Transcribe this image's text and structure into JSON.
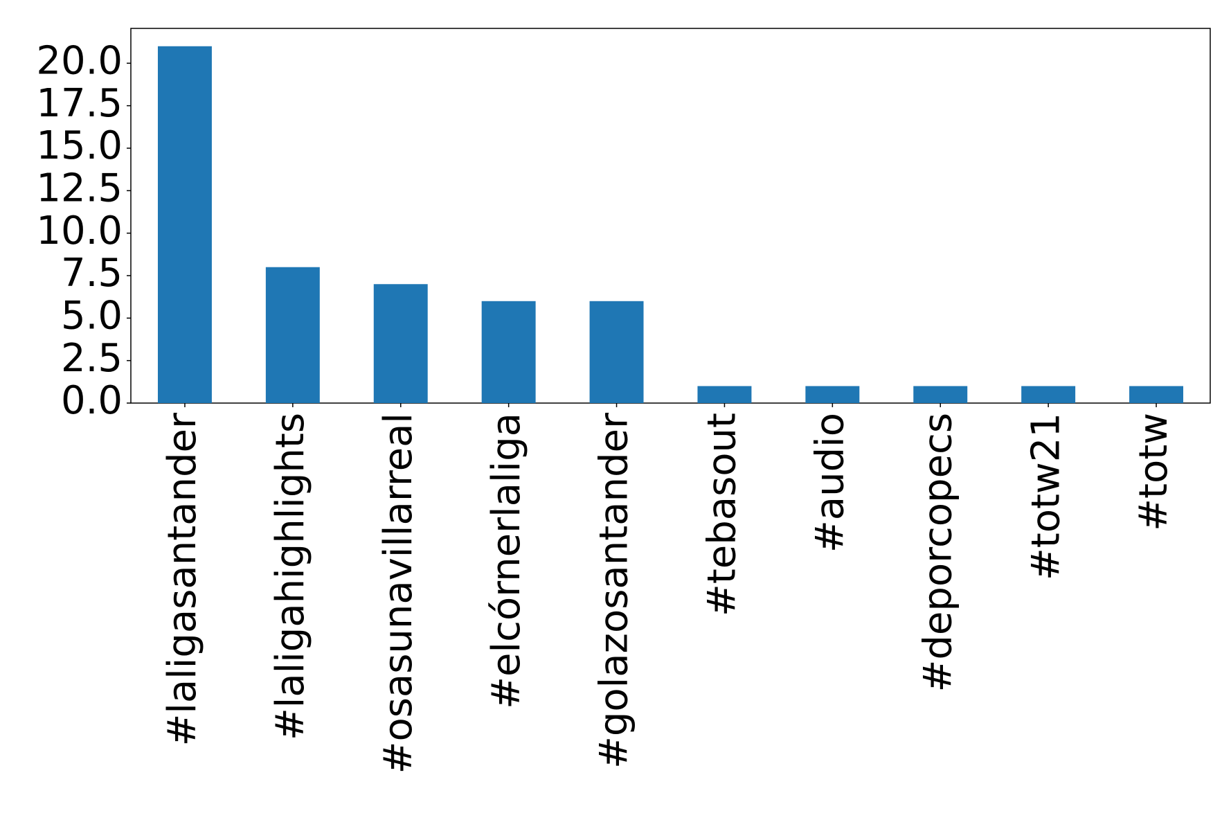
{
  "chart_data": {
    "type": "bar",
    "categories": [
      "#laligasantander",
      "#laligahighlights",
      "#osasunavillarreal",
      "#elcórnerlaliga",
      "#golazosantander",
      "#tebasout",
      "#audio",
      "#deporcopecs",
      "#totw21",
      "#totw"
    ],
    "values": [
      21,
      8,
      7,
      6,
      6,
      1,
      1,
      1,
      1,
      1
    ],
    "color": "#1f77b4",
    "ylim": [
      0,
      22.05
    ],
    "yticks": [
      {
        "value": 0,
        "label": "0.0"
      },
      2.5,
      {
        "value": 5,
        "label": "5.0"
      },
      7.5,
      {
        "value": 10,
        "label": "10.0"
      },
      12.5,
      {
        "value": 15,
        "label": "15.0"
      },
      17.5,
      {
        "value": 20,
        "label": "20.0"
      }
    ],
    "grid": false
  }
}
